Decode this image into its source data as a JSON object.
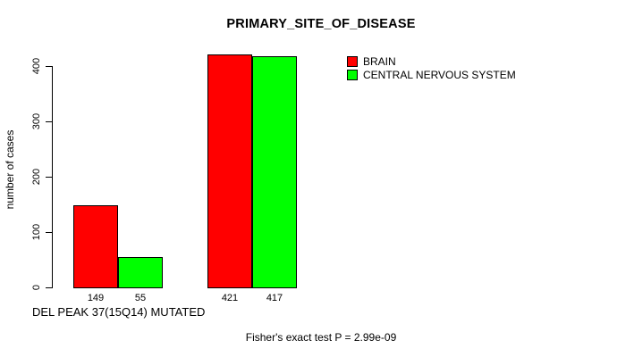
{
  "chart_data": {
    "type": "bar",
    "title": "PRIMARY_SITE_OF_DISEASE",
    "ylabel": "number of cases",
    "xlabel": "DEL PEAK 37(15Q14) MUTATED",
    "footnote": "Fisher's exact test P = 2.99e-09",
    "ylim": [
      0,
      400
    ],
    "yticks": [
      0,
      100,
      200,
      300,
      400
    ],
    "grid": false,
    "legend_position": "top-right",
    "groups": 2,
    "series": [
      {
        "name": "BRAIN",
        "color": "#ff0000",
        "values": [
          149,
          421
        ]
      },
      {
        "name": "CENTRAL NERVOUS SYSTEM",
        "color": "#00ff00",
        "values": [
          55,
          417
        ]
      }
    ],
    "bar_value_labels": [
      [
        "149",
        "421"
      ],
      [
        "55",
        "417"
      ]
    ],
    "colors": {
      "bar_brain": "#ff0000",
      "bar_cns": "#00ff00",
      "bar_border": "#000000",
      "axis": "#000000",
      "text": "#000000",
      "background": "#ffffff"
    }
  }
}
